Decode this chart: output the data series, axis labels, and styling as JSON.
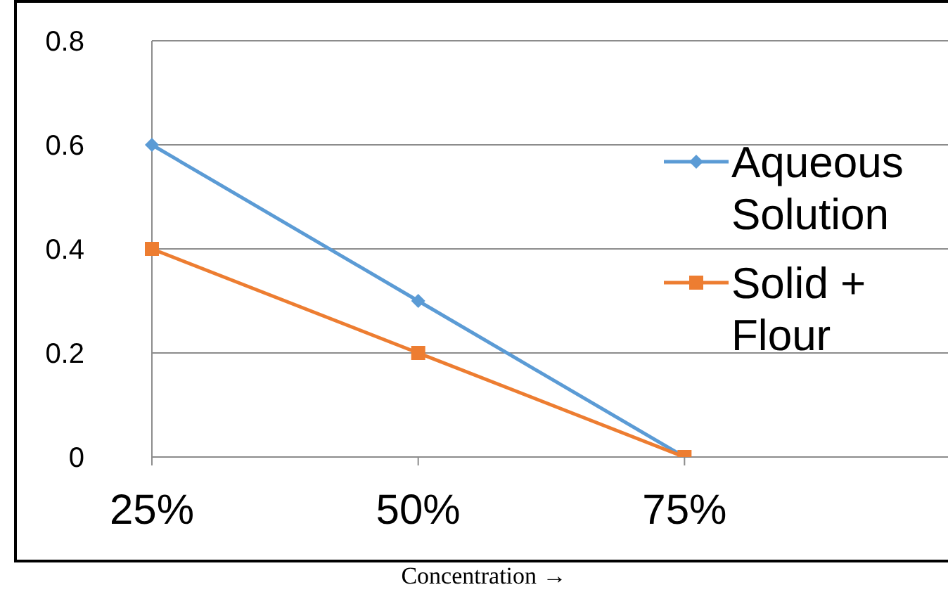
{
  "chart_data": {
    "type": "line",
    "annotations": [
      "Concentration →"
    ],
    "categories": [
      "25%",
      "50%",
      "75%",
      null
    ],
    "series": [
      {
        "name": "Aqueous Solution",
        "color": "#5b9bd5",
        "marker": "diamond",
        "values": [
          0.6,
          0.3,
          0,
          null
        ]
      },
      {
        "name": "Solid + Flour",
        "color": "#ed7d31",
        "marker": "square",
        "values": [
          0.4,
          0.2,
          0,
          null
        ]
      }
    ],
    "ylim": [
      0,
      0.8
    ],
    "yticks": [
      0,
      0.2,
      0.4,
      0.6,
      0.8
    ],
    "grid": "y",
    "legend": "right"
  }
}
